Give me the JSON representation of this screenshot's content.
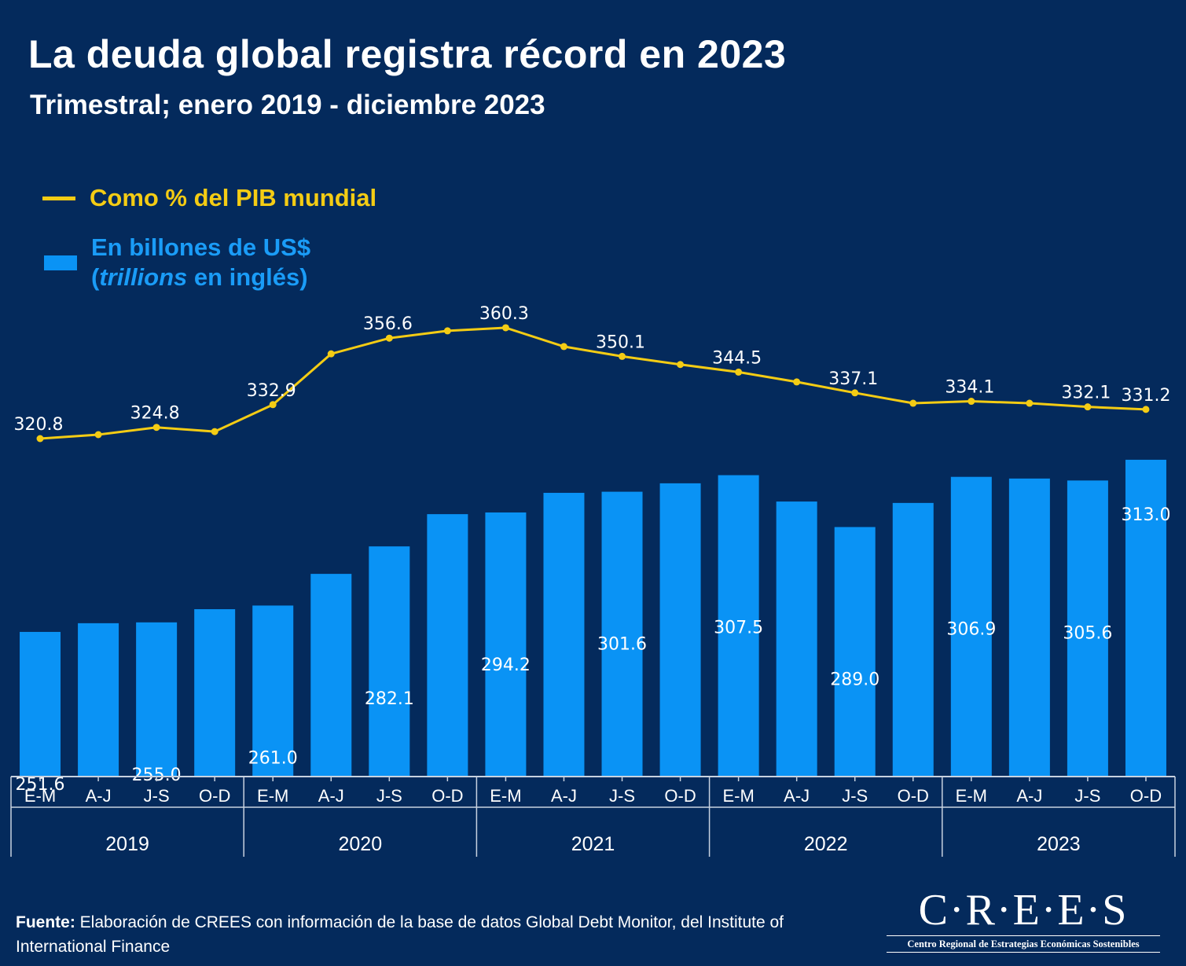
{
  "header": {
    "title": "La deuda global registra récord en 2023",
    "subtitle": "Trimestral; enero 2019 - diciembre 2023"
  },
  "legend": {
    "line_label": "Como % del PIB mundial",
    "bar_label_line1": "En billones de US$",
    "bar_label_paren_open": "(",
    "bar_label_italic": "trillions",
    "bar_label_rest": " en inglés)"
  },
  "colors": {
    "background": "#042a5c",
    "bars": "#0a93f5",
    "line": "#f4cc14",
    "text": "#ffffff",
    "axis": "#c8d2e0"
  },
  "chart_data": {
    "type": "bar+line",
    "title": "La deuda global registra récord en 2023",
    "subtitle": "Trimestral; enero 2019 - diciembre 2023",
    "categories": [
      "E-M",
      "A-J",
      "J-S",
      "O-D",
      "E-M",
      "A-J",
      "J-S",
      "O-D",
      "E-M",
      "A-J",
      "J-S",
      "O-D",
      "E-M",
      "A-J",
      "J-S",
      "O-D",
      "E-M",
      "A-J",
      "J-S",
      "O-D"
    ],
    "groups": [
      {
        "label": "2019",
        "count": 4
      },
      {
        "label": "2020",
        "count": 4
      },
      {
        "label": "2021",
        "count": 4
      },
      {
        "label": "2022",
        "count": 4
      },
      {
        "label": "2023",
        "count": 4
      }
    ],
    "series": [
      {
        "name": "En billones de US$ (trillions en inglés)",
        "type": "bar",
        "values": [
          251.6,
          254.7,
          255.0,
          259.7,
          261.0,
          272.3,
          282.1,
          293.6,
          294.2,
          301.2,
          301.6,
          304.6,
          307.5,
          298.1,
          289.0,
          297.6,
          306.9,
          306.3,
          305.6,
          313.0
        ],
        "labels": [
          "251.6",
          "",
          "255.0",
          "",
          "261.0",
          "",
          "282.1",
          "",
          "294.2",
          "",
          "301.6",
          "",
          "307.5",
          "",
          "289.0",
          "",
          "306.9",
          "",
          "305.6",
          "313.0"
        ],
        "ylim": [
          200,
          320
        ]
      },
      {
        "name": "Como % del PIB mundial",
        "type": "line",
        "values": [
          320.8,
          322.2,
          324.8,
          323.3,
          332.9,
          351.0,
          356.6,
          359.2,
          360.3,
          353.6,
          350.1,
          347.2,
          344.5,
          341.0,
          337.1,
          333.4,
          334.1,
          333.4,
          332.1,
          331.2
        ],
        "labels": [
          "320.8",
          "",
          "324.8",
          "",
          "332.9",
          "",
          "356.6",
          "",
          "360.3",
          "",
          "350.1",
          "",
          "344.5",
          "",
          "337.1",
          "",
          "334.1",
          "",
          "332.1",
          "331.2"
        ]
      }
    ],
    "xlabel": "",
    "ylabel": "",
    "grid": false,
    "legend_position": "top-left"
  },
  "footer": {
    "source_label": "Fuente:",
    "source_text": " Elaboración de CREES con información de la base de datos Global Debt Monitor, del Institute of International Finance"
  },
  "logo": {
    "name": "C·R·E·E·S",
    "tagline": "Centro Regional de Estrategias Económicas Sostenibles"
  }
}
